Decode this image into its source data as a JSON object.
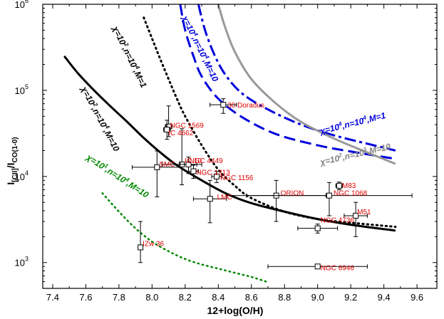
{
  "chart_data": {
    "type": "scatter",
    "xlabel": "12+log(O/H)",
    "ylabel": "I[CII]/ICO(1-0)",
    "ylabel_main": "I",
    "ylabel_sub1": "[CII]",
    "ylabel_slash": "/I",
    "ylabel_sub2": "CO(1-0)",
    "xlim": [
      7.34,
      9.72
    ],
    "ylim_log10": [
      2.7,
      6.0
    ],
    "x_ticks": [
      "7.4",
      "7.6",
      "7.8",
      "8.0",
      "8.2",
      "8.4",
      "8.6",
      "8.8",
      "9.0",
      "9.2",
      "9.4",
      "9.6"
    ],
    "y_ticks": [
      {
        "base": "10",
        "exp": "3",
        "value": 1000
      },
      {
        "base": "10",
        "exp": "4",
        "value": 10000
      },
      {
        "base": "10",
        "exp": "5",
        "value": 100000
      },
      {
        "base": "10",
        "exp": "6",
        "value": 1000000
      }
    ],
    "points": [
      {
        "name": "30 Doradus",
        "x": 8.43,
        "y": 68000,
        "xerr": [
          0.08,
          0.08
        ],
        "yerr": [
          14000,
          12000
        ]
      },
      {
        "name": "NGC 1569",
        "x": 8.1,
        "y": 38000,
        "xerr": [
          0.02,
          0.02
        ],
        "yerr": [
          9000,
          28000
        ]
      },
      {
        "name": "IC 4662",
        "x": 8.09,
        "y": 35000,
        "xerr": [
          0.02,
          0.02
        ],
        "yerr": [
          8000,
          10000
        ]
      },
      {
        "name": "SMC",
        "x": 8.03,
        "y": 12800,
        "xerr": [
          0.15,
          0.15
        ],
        "yerr": [
          7000,
          7000
        ]
      },
      {
        "name": "IC 10",
        "x": 8.18,
        "y": 13800,
        "xerr": [
          0.12,
          0.12
        ],
        "yerr": [
          5800,
          22000
        ]
      },
      {
        "name": "NGC 4449",
        "x": 8.22,
        "y": 13800,
        "xerr": [
          0.05,
          0.05
        ],
        "yerr": [
          3000,
          3000
        ]
      },
      {
        "name": "NGC 1313",
        "x": 8.25,
        "y": 11500,
        "xerr": [
          0.03,
          0.03
        ],
        "yerr": [
          2000,
          2000
        ]
      },
      {
        "name": "NGC 1156",
        "x": 8.39,
        "y": 10000,
        "xerr": [
          0.03,
          0.03
        ],
        "yerr": [
          1500,
          1500
        ]
      },
      {
        "name": "LMC",
        "x": 8.35,
        "y": 5500,
        "xerr": [
          0.1,
          0.1
        ],
        "yerr": [
          2600,
          3500
        ]
      },
      {
        "name": "ORION",
        "x": 8.75,
        "y": 6000,
        "xerr": [
          0.3,
          0.3
        ],
        "yerr": [
          3000,
          3000
        ]
      },
      {
        "name": "NGC 1068",
        "x": 9.07,
        "y": 6000,
        "xerr": [
          0.5,
          0.5
        ],
        "yerr": [
          2500,
          2500
        ]
      },
      {
        "name": "M83",
        "x": 9.13,
        "y": 7800,
        "xerr": [
          0.02,
          0.02
        ],
        "yerr": [
          800,
          800
        ]
      },
      {
        "name": "M51",
        "x": 9.23,
        "y": 3500,
        "xerr": [
          0.07,
          0.07
        ],
        "yerr": [
          1500,
          1500
        ]
      },
      {
        "name": "NGC 4736",
        "x": 9.0,
        "y": 2500,
        "xerr": [
          0.12,
          0.12
        ],
        "yerr": [
          300,
          300
        ]
      },
      {
        "name": "IZw 36",
        "x": 7.93,
        "y": 1500,
        "xerr": [
          0.01,
          0.01
        ],
        "yerr": [
          500,
          1500
        ]
      },
      {
        "name": "NGC 6946",
        "x": 9.0,
        "y": 900,
        "xerr": [
          0.3,
          0.3
        ],
        "yerr": [
          0,
          0
        ]
      }
    ],
    "point_labels": {
      "30 Doradus": {
        "text": "30 Doradus",
        "dx": 6,
        "dy": 0
      },
      "NGC 1569": {
        "text": "NGC 1569",
        "dx": 2,
        "dy": -2
      },
      "IC 4662": {
        "text": "IC 4662",
        "dx": 2,
        "dy": 4
      },
      "SMC": {
        "text": "SMC",
        "dx": 3,
        "dy": -5
      },
      "IC 10": {
        "text": "IC 10",
        "dx": 4,
        "dy": -6
      },
      "NGC 4449": {
        "text": "NGC 4449",
        "dx": 1,
        "dy": -6
      },
      "NGC 1313": {
        "text": "NGC 1313",
        "dx": 4,
        "dy": 1
      },
      "NGC 1156": {
        "text": "NGC 1156",
        "dx": 5,
        "dy": 1
      },
      "LMC": {
        "text": "LMC",
        "dx": 10,
        "dy": -3
      },
      "ORION": {
        "text": "ORION",
        "dx": 6,
        "dy": -4
      },
      "NGC 1068": {
        "text": "NGC 1068",
        "dx": 6,
        "dy": -4
      },
      "M83": {
        "text": "M83",
        "dx": 4,
        "dy": -1
      },
      "M51": {
        "text": "M51",
        "dx": 2,
        "dy": -6
      },
      "NGC 4736": {
        "text": "NGC 4736",
        "dx": 4,
        "dy": -12
      },
      "IZw 36": {
        "text": "IZw 36",
        "dx": 3,
        "dy": -6
      },
      "NGC 6946": {
        "text": "NGC 6946",
        "dx": 4,
        "dy": 1
      }
    },
    "series": [
      {
        "label_parts": [
          "χ=10",
          "2",
          ",n=10",
          "4",
          ",M=10"
        ],
        "color": "#000000",
        "style": "solid",
        "width": 3,
        "x": [
          7.47,
          7.55,
          7.65,
          7.75,
          7.85,
          7.95,
          8.05,
          8.15,
          8.3,
          8.45,
          8.6,
          8.8,
          9.0,
          9.2,
          9.47
        ],
        "y": [
          250000,
          160000,
          100000,
          65000,
          43000,
          28000,
          19000,
          13500,
          9000,
          6300,
          4900,
          3900,
          3200,
          2750,
          2350
        ]
      },
      {
        "label_parts": [
          "χ=10",
          "2",
          ",n=10",
          "4",
          ",M=1"
        ],
        "color": "#000000",
        "style": "dotted",
        "width": 3,
        "x": [
          7.95,
          8.0,
          8.05,
          8.1,
          8.15,
          8.2,
          8.3,
          8.4,
          8.5,
          8.6,
          8.8,
          9.0,
          9.2,
          9.47
        ],
        "y": [
          700000,
          400000,
          230000,
          135000,
          80000,
          50000,
          23000,
          12000,
          7800,
          5600,
          3900,
          3200,
          2900,
          2600
        ]
      },
      {
        "label_parts": [
          "χ=10",
          "1",
          ",n=10",
          "4",
          ",M=10"
        ],
        "color": "#008800",
        "style": "dotted",
        "width": 2.5,
        "x": [
          7.7,
          7.8,
          7.9,
          8.0,
          8.1,
          8.2,
          8.3,
          8.4,
          8.5,
          8.6,
          8.69
        ],
        "y": [
          6400,
          3900,
          2500,
          1750,
          1350,
          1100,
          950,
          850,
          760,
          680,
          600
        ]
      },
      {
        "label_parts": [
          "χ=10",
          "4",
          ",n=10",
          "4",
          ",M=1"
        ],
        "color": "#0000dd",
        "style": "dashdot",
        "width": 3,
        "x": [
          8.28,
          8.32,
          8.38,
          8.45,
          8.55,
          8.7,
          8.9,
          9.1,
          9.3,
          9.47
        ],
        "y": [
          1000000,
          500000,
          250000,
          145000,
          90000,
          60000,
          40000,
          30000,
          24000,
          20000
        ]
      },
      {
        "label_parts": [
          "χ=10",
          "4",
          ",n=10",
          "4",
          ",M=10"
        ],
        "color": "#0000dd",
        "style": "dashed",
        "width": 3,
        "x": [
          8.17,
          8.2,
          8.25,
          8.3,
          8.4,
          8.55,
          8.75,
          9.0,
          9.2,
          9.47
        ],
        "y": [
          1000000,
          500000,
          250000,
          145000,
          80000,
          48000,
          31000,
          23000,
          19500,
          16000
        ]
      },
      {
        "label_parts": [
          "χ=10",
          "2",
          ",n=10",
          "3",
          ",M=10"
        ],
        "color": "#999999",
        "style": "solid",
        "width": 3,
        "x": [
          8.4,
          8.44,
          8.5,
          8.6,
          8.75,
          8.9,
          9.1,
          9.3,
          9.47
        ],
        "y": [
          1000000,
          550000,
          280000,
          135000,
          70000,
          43000,
          27500,
          19000,
          14000
        ]
      }
    ],
    "curve_labels": [
      {
        "series": 0,
        "color": "#000000",
        "anchor_x": 7.57,
        "anchor_y": 105000,
        "angle": 62
      },
      {
        "series": 1,
        "color": "#000000",
        "anchor_x": 7.76,
        "anchor_y": 530000,
        "angle": 64
      },
      {
        "series": 2,
        "color": "#008800",
        "anchor_x": 7.6,
        "anchor_y": 16000,
        "angle": 33
      },
      {
        "series": 3,
        "color": "#0000dd",
        "anchor_x": 9.02,
        "anchor_y": 31000,
        "angle": -14
      },
      {
        "series": 4,
        "color": "#0000dd",
        "anchor_x": 8.18,
        "anchor_y": 700000,
        "angle": 64
      },
      {
        "series": 5,
        "color": "#808080",
        "anchor_x": 9.02,
        "anchor_y": 13500,
        "angle": -13
      }
    ]
  }
}
